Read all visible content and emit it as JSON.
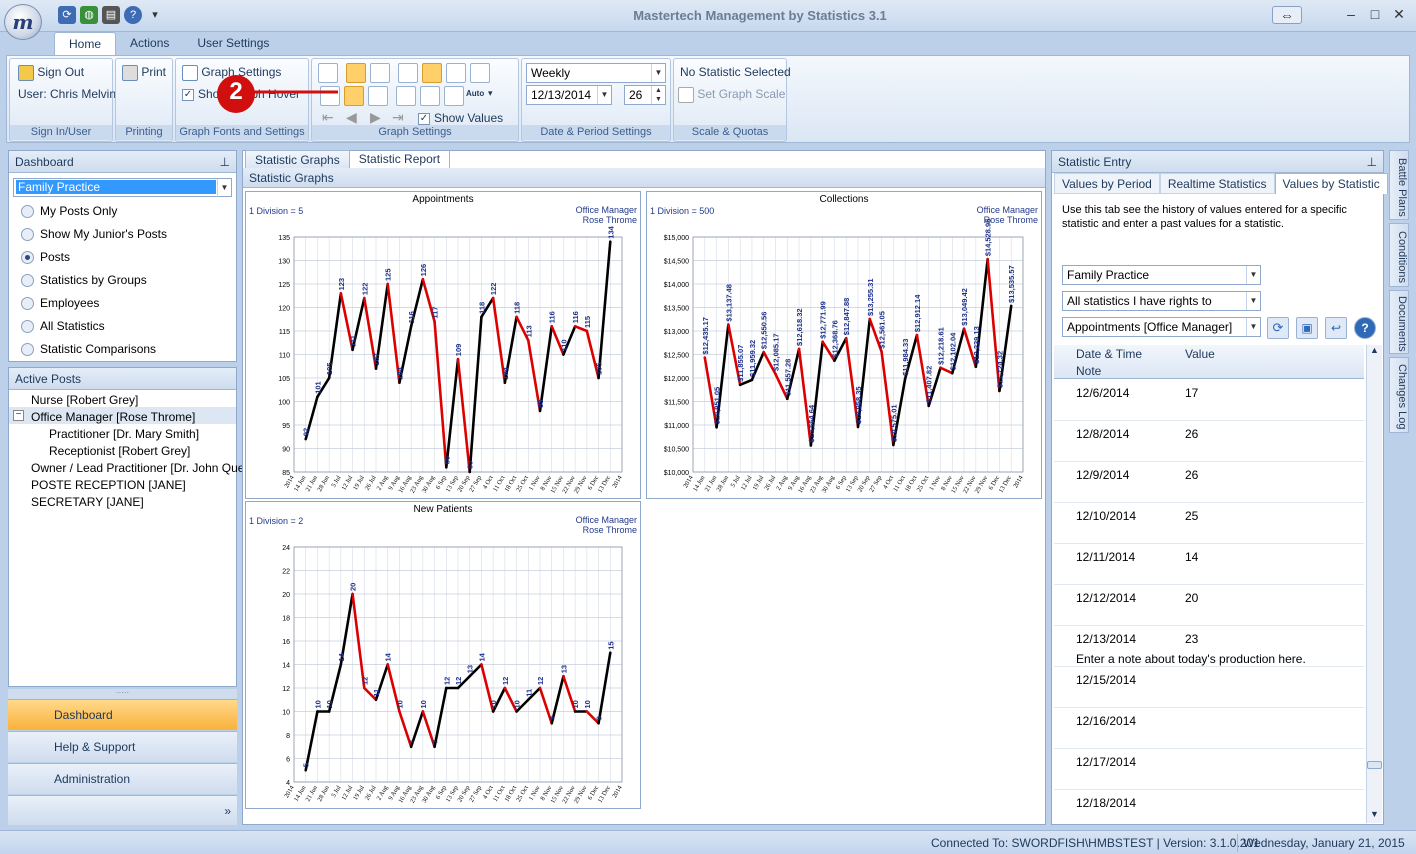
{
  "window": {
    "title": "Mastertech Management by Statistics 3.1",
    "logo": "m"
  },
  "tabs": [
    "Home",
    "Actions",
    "User Settings"
  ],
  "ribbon": {
    "signin": {
      "sign_out": "Sign Out",
      "user": "User: Chris Melvin",
      "label": "Sign In/User"
    },
    "printing": {
      "print": "Print",
      "label": "Printing"
    },
    "graph_fonts": {
      "graph_settings": "Graph Settings",
      "show_hover": "Show Graph Hover",
      "label": "Graph Fonts and Settings"
    },
    "graph_settings": {
      "show_values": "Show Values",
      "auto": "Auto",
      "label": "Graph Settings"
    },
    "date_period": {
      "period": "Weekly",
      "date": "12/13/2014",
      "count": "26",
      "label": "Date & Period Settings"
    },
    "scale": {
      "no_stat": "No Statistic Selected",
      "set_scale": "Set Graph Scale",
      "label": "Scale & Quotas"
    },
    "callout_number": "2"
  },
  "dashboard": {
    "title": "Dashboard",
    "org": "Family Practice",
    "options": [
      "My Posts Only",
      "Show My Junior's Posts",
      "Posts",
      "Statistics by Groups",
      "Employees",
      "All Statistics",
      "Statistic Comparisons"
    ],
    "selected": 2
  },
  "active_posts": {
    "title": "Active Posts",
    "items": [
      "Nurse [Robert Grey]",
      "Office Manager [Rose Throme]",
      "Practitioner  [Dr. Mary Smith]",
      "Receptionist  [Robert Grey]",
      "Owner / Lead Practitioner  [Dr. John Que]",
      "POSTE RECEPTION [JANE]",
      "SECRETARY [JANE]"
    ],
    "collapse_glyph": "−"
  },
  "nav": {
    "dashboard": "Dashboard",
    "help": "Help & Support",
    "admin": "Administration"
  },
  "center": {
    "tabs": [
      "Statistic Graphs",
      "Statistic Report"
    ],
    "header": "Statistic Graphs"
  },
  "graphs": {
    "owner1": "Office Manager",
    "owner2": "Rose Throme",
    "x_labels": [
      "2014",
      "14 Jun",
      "21 Jun",
      "28 Jun",
      "5 Jul",
      "12 Jul",
      "19 Jul",
      "26 Jul",
      "2 Aug",
      "9 Aug",
      "16 Aug",
      "23 Aug",
      "30 Aug",
      "6 Sep",
      "13 Sep",
      "20 Sep",
      "27 Sep",
      "4 Oct",
      "11 Oct",
      "18 Oct",
      "25 Oct",
      "1 Nov",
      "8 Nov",
      "15 Nov",
      "22 Nov",
      "29 Nov",
      "6 Dec",
      "13 Dec",
      "2014"
    ]
  },
  "chart_data": [
    {
      "type": "line",
      "title": "Appointments",
      "division": "1 Division = 5",
      "ylim": [
        85,
        135
      ],
      "yticks": [
        "85",
        "90",
        "95",
        "100",
        "105",
        "110",
        "115",
        "120",
        "125",
        "130",
        "135"
      ],
      "values": [
        92,
        101,
        105,
        123,
        111,
        122,
        107,
        125,
        104,
        116,
        126,
        117,
        86,
        109,
        85,
        118,
        122,
        104,
        118,
        113,
        98,
        116,
        110,
        116,
        115,
        105,
        134
      ],
      "labels": [
        "92",
        "101",
        "105",
        "123",
        "111",
        "122",
        "107",
        "125",
        "104",
        "116",
        "126",
        "117",
        "86",
        "109",
        "85",
        "118",
        "122",
        "104",
        "118",
        "113",
        "98",
        "116",
        "110",
        "116",
        "115",
        "105",
        "134"
      ]
    },
    {
      "type": "line",
      "title": "Collections",
      "division": "1 Division = 500",
      "ylim": [
        10000,
        15000
      ],
      "yticks": [
        "$10,000",
        "$10,500",
        "$11,000",
        "$11,500",
        "$12,000",
        "$12,500",
        "$13,000",
        "$13,500",
        "$14,000",
        "$14,500",
        "$15,000"
      ],
      "values": [
        12435,
        10951,
        13137,
        11855,
        11959,
        12550,
        12085,
        11557,
        12618,
        10564,
        12771,
        12368,
        12847,
        10958,
        13255,
        12561,
        10575,
        11984,
        12912,
        11407,
        12218,
        12102,
        13049,
        12239,
        14528,
        11724,
        13535
      ],
      "labels": [
        "$12,435.17",
        "$10,951.05",
        "$13,137.48",
        "$11,855.07",
        "$11,959.32",
        "$12,550.56",
        "$12,085.17",
        "$11,557.28",
        "$12,618.32",
        "$10,564.64",
        "$12,771.99",
        "$12,368.76",
        "$12,847.88",
        "$10,958.35",
        "$13,255.31",
        "$12,561.05",
        "$10,575.01",
        "$11,984.33",
        "$12,912.14",
        "$11,407.82",
        "$12,218.61",
        "$12,102.04",
        "$13,049.42",
        "$12,239.13",
        "$14,528.95",
        "$11,724.32",
        "$13,535.57"
      ]
    },
    {
      "type": "line",
      "title": "New Patients",
      "division": "1 Division = 2",
      "ylim": [
        4,
        24
      ],
      "yticks": [
        "4",
        "6",
        "8",
        "10",
        "12",
        "14",
        "16",
        "18",
        "20",
        "22",
        "24"
      ],
      "values": [
        5,
        10,
        10,
        14,
        20,
        12,
        11,
        14,
        10,
        7,
        10,
        7,
        12,
        12,
        13,
        14,
        10,
        12,
        10,
        11,
        12,
        9,
        13,
        10,
        10,
        9,
        15
      ],
      "labels": [
        "5",
        "10",
        "10",
        "14",
        "20",
        "12",
        "11",
        "14",
        "10",
        "7",
        "10",
        "7",
        "12",
        "12",
        "13",
        "14",
        "10",
        "12",
        "10",
        "11",
        "12",
        "9",
        "13",
        "10",
        "10",
        "9",
        "15"
      ]
    }
  ],
  "stat_entry": {
    "title": "Statistic Entry",
    "tabs": [
      "Values by Period",
      "Realtime Statistics",
      "Values by Statistic"
    ],
    "desc": "Use this tab see the history of values entered for a specific statistic and enter a past values for a statistic.",
    "org": "Family Practice",
    "filter": "All statistics I have rights to",
    "stat": "Appointments [Office Manager]",
    "col_date": "Date & Time",
    "col_value": "Value",
    "col_note": "Note",
    "rows": [
      {
        "date": "12/6/2014",
        "value": "17",
        "note": ""
      },
      {
        "date": "12/8/2014",
        "value": "26",
        "note": ""
      },
      {
        "date": "12/9/2014",
        "value": "26",
        "note": ""
      },
      {
        "date": "12/10/2014",
        "value": "25",
        "note": ""
      },
      {
        "date": "12/11/2014",
        "value": "14",
        "note": ""
      },
      {
        "date": "12/12/2014",
        "value": "20",
        "note": ""
      },
      {
        "date": "12/13/2014",
        "value": "23",
        "note": "Enter a note about today's production here."
      },
      {
        "date": "12/15/2014",
        "value": "",
        "note": ""
      },
      {
        "date": "12/16/2014",
        "value": "",
        "note": ""
      },
      {
        "date": "12/17/2014",
        "value": "",
        "note": ""
      },
      {
        "date": "12/18/2014",
        "value": "",
        "note": ""
      }
    ]
  },
  "side_tabs": [
    "Battle Plans",
    "Conditions",
    "Documents",
    "Changes Log"
  ],
  "status": {
    "connected": "Connected To: SWORDFISH\\HMBSTEST | Version: 3.1.0.201",
    "date": "Wednesday, January 21, 2015"
  },
  "colors": {
    "accent": "#f9b13a",
    "line_up": "#000000",
    "line_down": "#dd0000",
    "callout": "#d10f0f"
  }
}
